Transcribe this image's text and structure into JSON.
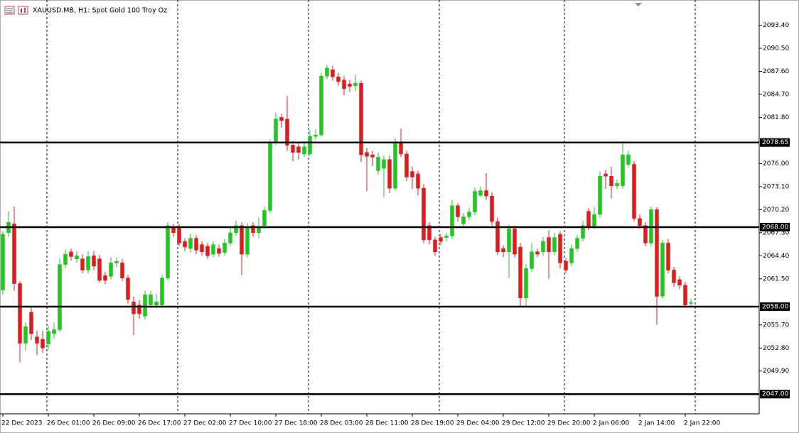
{
  "chart_data": {
    "type": "candlestick",
    "title": "XAUUSD.MB, H1:  Spot Gold 100 Troy Oz",
    "up_color": "#1ec81e",
    "down_color": "#e31a1c",
    "level_color": "#000000",
    "categories": [
      "22 Dec 2023",
      null,
      null,
      null,
      null,
      null,
      null,
      null,
      "26 Dec 01:00",
      null,
      null,
      null,
      null,
      null,
      null,
      null,
      "26 Dec 09:00",
      null,
      null,
      null,
      null,
      null,
      null,
      null,
      "26 Dec 17:00",
      null,
      null,
      null,
      null,
      null,
      null,
      null,
      "27 Dec 02:00",
      null,
      null,
      null,
      null,
      null,
      null,
      null,
      "27 Dec 10:00",
      null,
      null,
      null,
      null,
      null,
      null,
      null,
      "27 Dec 18:00",
      null,
      null,
      null,
      null,
      null,
      null,
      null,
      "28 Dec 03:00",
      null,
      null,
      null,
      null,
      null,
      null,
      null,
      "28 Dec 11:00",
      null,
      null,
      null,
      null,
      null,
      null,
      null,
      "28 Dec 19:00",
      null,
      null,
      null,
      null,
      null,
      null,
      null,
      "29 Dec 04:00",
      null,
      null,
      null,
      null,
      null,
      null,
      null,
      "29 Dec 12:00",
      null,
      null,
      null,
      null,
      null,
      null,
      null,
      "29 Dec 20:00",
      null,
      null,
      null,
      null,
      null,
      null,
      null,
      "2 Jan 06:00",
      null,
      null,
      null,
      null,
      null,
      null,
      null,
      "2 Jan 14:00",
      null,
      null,
      null,
      null,
      null,
      null,
      null,
      "2 Jan 22:00",
      null
    ],
    "open": [
      2060.1,
      2067.3,
      2068.4,
      2060.9,
      2053.4,
      2057.3,
      2054.2,
      2053.9,
      2053.3,
      2054.6,
      2055.1,
      2063.3,
      2064.9,
      2064.0,
      2064.0,
      2062.6,
      2064.4,
      2064.0,
      2061.9,
      2061.8,
      2063.5,
      2063.5,
      2061.6,
      2058.6,
      2058.2,
      2056.8,
      2058.2,
      2058.2,
      2058.2,
      2061.6,
      2068.0,
      2068.0,
      2066.2,
      2065.3,
      2066.6,
      2065.8,
      2065.6,
      2064.6,
      2065.3,
      2064.8,
      2066.0,
      2067.3,
      2068.2,
      2064.6,
      2068.2,
      2067.3,
      2068.2,
      2070.1,
      2078.7,
      2081.8,
      2081.6,
      2078.3,
      2078.1,
      2077.2,
      2077.2,
      2079.4,
      2079.6,
      2087.0,
      2087.8,
      2086.9,
      2086.5,
      2086.0,
      2085.8,
      2086.1,
      2077.4,
      2077.1,
      2075.1,
      2075.4,
      2076.5,
      2072.9,
      2078.7,
      2077.2,
      2075.0,
      2074.7,
      2072.9,
      2068.2,
      2066.4,
      2066.7,
      2066.7,
      2066.9,
      2070.7,
      2068.4,
      2069.3,
      2069.9,
      2072.0,
      2072.6,
      2071.9,
      2068.7,
      2065.3,
      2064.9,
      2067.8,
      2065.5,
      2059.1,
      2062.8,
      2064.9,
      2064.9,
      2066.7,
      2064.9,
      2067.1,
      2063.7,
      2063.5,
      2065.3,
      2066.6,
      2070.0,
      2068.0,
      2069.6,
      2074.7,
      2074.4,
      2073.2,
      2073.2,
      2075.9,
      2075.9,
      2069.1,
      2068.2,
      2066.0,
      2070.2,
      2059.3,
      2066.0,
      2062.6,
      2061.4,
      2060.7,
      2058.4
    ],
    "high": [
      2067.5,
      2070.0,
      2070.6,
      2061.2,
      2056.0,
      2058.0,
      2055.0,
      2055.0,
      2055.6,
      2056.0,
      2064.0,
      2065.2,
      2065.3,
      2065.0,
      2064.6,
      2065.0,
      2065.0,
      2064.5,
      2062.4,
      2064.2,
      2064.2,
      2064.0,
      2062.0,
      2059.3,
      2058.8,
      2060.0,
      2060.0,
      2059.6,
      2062.0,
      2068.6,
      2068.4,
      2068.4,
      2066.6,
      2067.2,
      2067.0,
      2066.2,
      2066.0,
      2066.2,
      2065.8,
      2066.5,
      2068.0,
      2068.8,
      2068.6,
      2068.5,
      2068.6,
      2069.2,
      2070.6,
      2079.0,
      2082.4,
      2082.3,
      2084.5,
      2078.8,
      2078.6,
      2078.8,
      2080.2,
      2080.3,
      2087.4,
      2088.4,
      2088.3,
      2087.4,
      2087.0,
      2086.5,
      2087.2,
      2086.4,
      2078.0,
      2077.6,
      2077.4,
      2077.0,
      2077.0,
      2079.2,
      2080.4,
      2077.6,
      2075.6,
      2075.1,
      2073.4,
      2068.6,
      2066.8,
      2067.1,
      2067.3,
      2071.4,
      2071.0,
      2069.8,
      2070.4,
      2073.0,
      2073.1,
      2074.8,
      2072.4,
      2069.2,
      2065.7,
      2068.3,
      2068.2,
      2066.0,
      2063.4,
      2066.0,
      2065.3,
      2066.8,
      2067.6,
      2067.3,
      2067.5,
      2064.1,
      2065.8,
      2067.0,
      2068.8,
      2070.4,
      2070.5,
      2075.0,
      2075.2,
      2075.6,
      2074.0,
      2078.8,
      2077.6,
      2076.3,
      2069.6,
      2068.6,
      2070.6,
      2070.5,
      2066.4,
      2066.5,
      2063.0,
      2061.8,
      2061.1,
      2059.0
    ],
    "low": [
      2059.5,
      2066.8,
      2060.0,
      2051.0,
      2052.5,
      2053.8,
      2051.9,
      2052.2,
      2052.6,
      2054.0,
      2054.8,
      2062.9,
      2063.8,
      2063.5,
      2062.2,
      2062.2,
      2062.6,
      2061.0,
      2060.8,
      2061.4,
      2063.0,
      2061.2,
      2058.4,
      2054.4,
      2056.5,
      2056.4,
      2057.8,
      2057.8,
      2058.0,
      2061.3,
      2066.8,
      2065.6,
      2065.0,
      2064.8,
      2064.6,
      2064.4,
      2064.0,
      2064.2,
      2064.3,
      2064.4,
      2065.6,
      2066.9,
      2062.0,
      2064.2,
      2066.8,
      2066.6,
      2067.8,
      2069.8,
      2078.3,
      2080.5,
      2077.6,
      2076.3,
      2076.5,
      2076.8,
      2077.0,
      2079.0,
      2079.4,
      2086.6,
      2086.4,
      2085.8,
      2084.6,
      2085.0,
      2085.1,
      2076.2,
      2072.5,
      2075.7,
      2074.6,
      2071.8,
      2072.3,
      2072.6,
      2076.8,
      2073.8,
      2072.8,
      2072.0,
      2066.0,
      2065.8,
      2064.4,
      2065.7,
      2066.2,
      2066.5,
      2068.7,
      2067.9,
      2068.9,
      2069.5,
      2071.8,
      2071.4,
      2068.2,
      2064.5,
      2064.2,
      2061.6,
      2064.2,
      2058.0,
      2058.0,
      2062.4,
      2064.2,
      2064.4,
      2061.5,
      2064.5,
      2062.8,
      2062.2,
      2063.1,
      2064.9,
      2066.2,
      2067.6,
      2067.8,
      2069.2,
      2072.8,
      2071.6,
      2072.8,
      2072.8,
      2075.5,
      2068.7,
      2067.8,
      2065.6,
      2065.6,
      2055.7,
      2059.0,
      2062.2,
      2060.5,
      2060.2,
      2057.9,
      2058.1
    ],
    "close": [
      2067.1,
      2068.6,
      2060.9,
      2053.4,
      2055.5,
      2054.6,
      2053.4,
      2052.8,
      2054.9,
      2055.1,
      2063.3,
      2064.6,
      2064.3,
      2064.4,
      2062.6,
      2064.3,
      2063.1,
      2061.3,
      2061.3,
      2063.5,
      2063.7,
      2061.6,
      2058.9,
      2057.1,
      2057.1,
      2059.5,
      2059.5,
      2058.6,
      2061.6,
      2068.2,
      2067.3,
      2066.0,
      2065.5,
      2066.6,
      2065.1,
      2064.9,
      2064.4,
      2065.8,
      2064.7,
      2066.0,
      2067.3,
      2068.2,
      2064.6,
      2068.0,
      2067.3,
      2068.0,
      2070.1,
      2078.7,
      2081.6,
      2081.4,
      2078.3,
      2077.4,
      2077.4,
      2078.1,
      2079.4,
      2079.6,
      2087.0,
      2088.0,
      2086.9,
      2086.3,
      2085.4,
      2085.7,
      2086.1,
      2077.1,
      2076.9,
      2076.8,
      2076.8,
      2076.5,
      2072.9,
      2078.7,
      2077.2,
      2074.3,
      2074.3,
      2072.9,
      2066.4,
      2066.4,
      2064.9,
      2066.2,
      2066.9,
      2070.7,
      2069.3,
      2069.3,
      2069.9,
      2072.5,
      2072.6,
      2071.9,
      2068.7,
      2064.9,
      2064.9,
      2067.8,
      2064.6,
      2059.1,
      2062.8,
      2064.9,
      2064.6,
      2066.2,
      2064.9,
      2066.7,
      2063.5,
      2062.6,
      2065.3,
      2066.6,
      2068.2,
      2068.0,
      2069.6,
      2074.4,
      2074.4,
      2073.2,
      2073.5,
      2077.1,
      2077.1,
      2069.1,
      2068.2,
      2066.0,
      2070.2,
      2059.3,
      2066.0,
      2062.6,
      2061.0,
      2060.7,
      2058.2,
      2058.5
    ],
    "levels": [
      {
        "value": 2078.65,
        "label": "2078.65"
      },
      {
        "value": 2068,
        "label": "2068.00"
      },
      {
        "value": 2058,
        "label": "2058.00"
      },
      {
        "value": 2047,
        "label": "2047.00"
      }
    ],
    "ylim": [
      2044.52,
      2096.57
    ],
    "yticks": [
      {
        "value": 2093.4,
        "label": "2093.40"
      },
      {
        "value": 2090.5,
        "label": "2090.50"
      },
      {
        "value": 2087.6,
        "label": "2087.60"
      },
      {
        "value": 2084.7,
        "label": "2084.70"
      },
      {
        "value": 2081.8,
        "label": "2081.80"
      },
      {
        "value": 2076,
        "label": "2076.00"
      },
      {
        "value": 2073.1,
        "label": "2073.10"
      },
      {
        "value": 2070.2,
        "label": "2070.20"
      },
      {
        "value": 2067.3,
        "label": "2067.30"
      },
      {
        "value": 2064.4,
        "label": "2064.40"
      },
      {
        "value": 2061.5,
        "label": "2061.50"
      },
      {
        "value": 2055.7,
        "label": "2055.70"
      },
      {
        "value": 2052.8,
        "label": "2052.80"
      },
      {
        "value": 2049.9,
        "label": "2049.90"
      }
    ]
  }
}
